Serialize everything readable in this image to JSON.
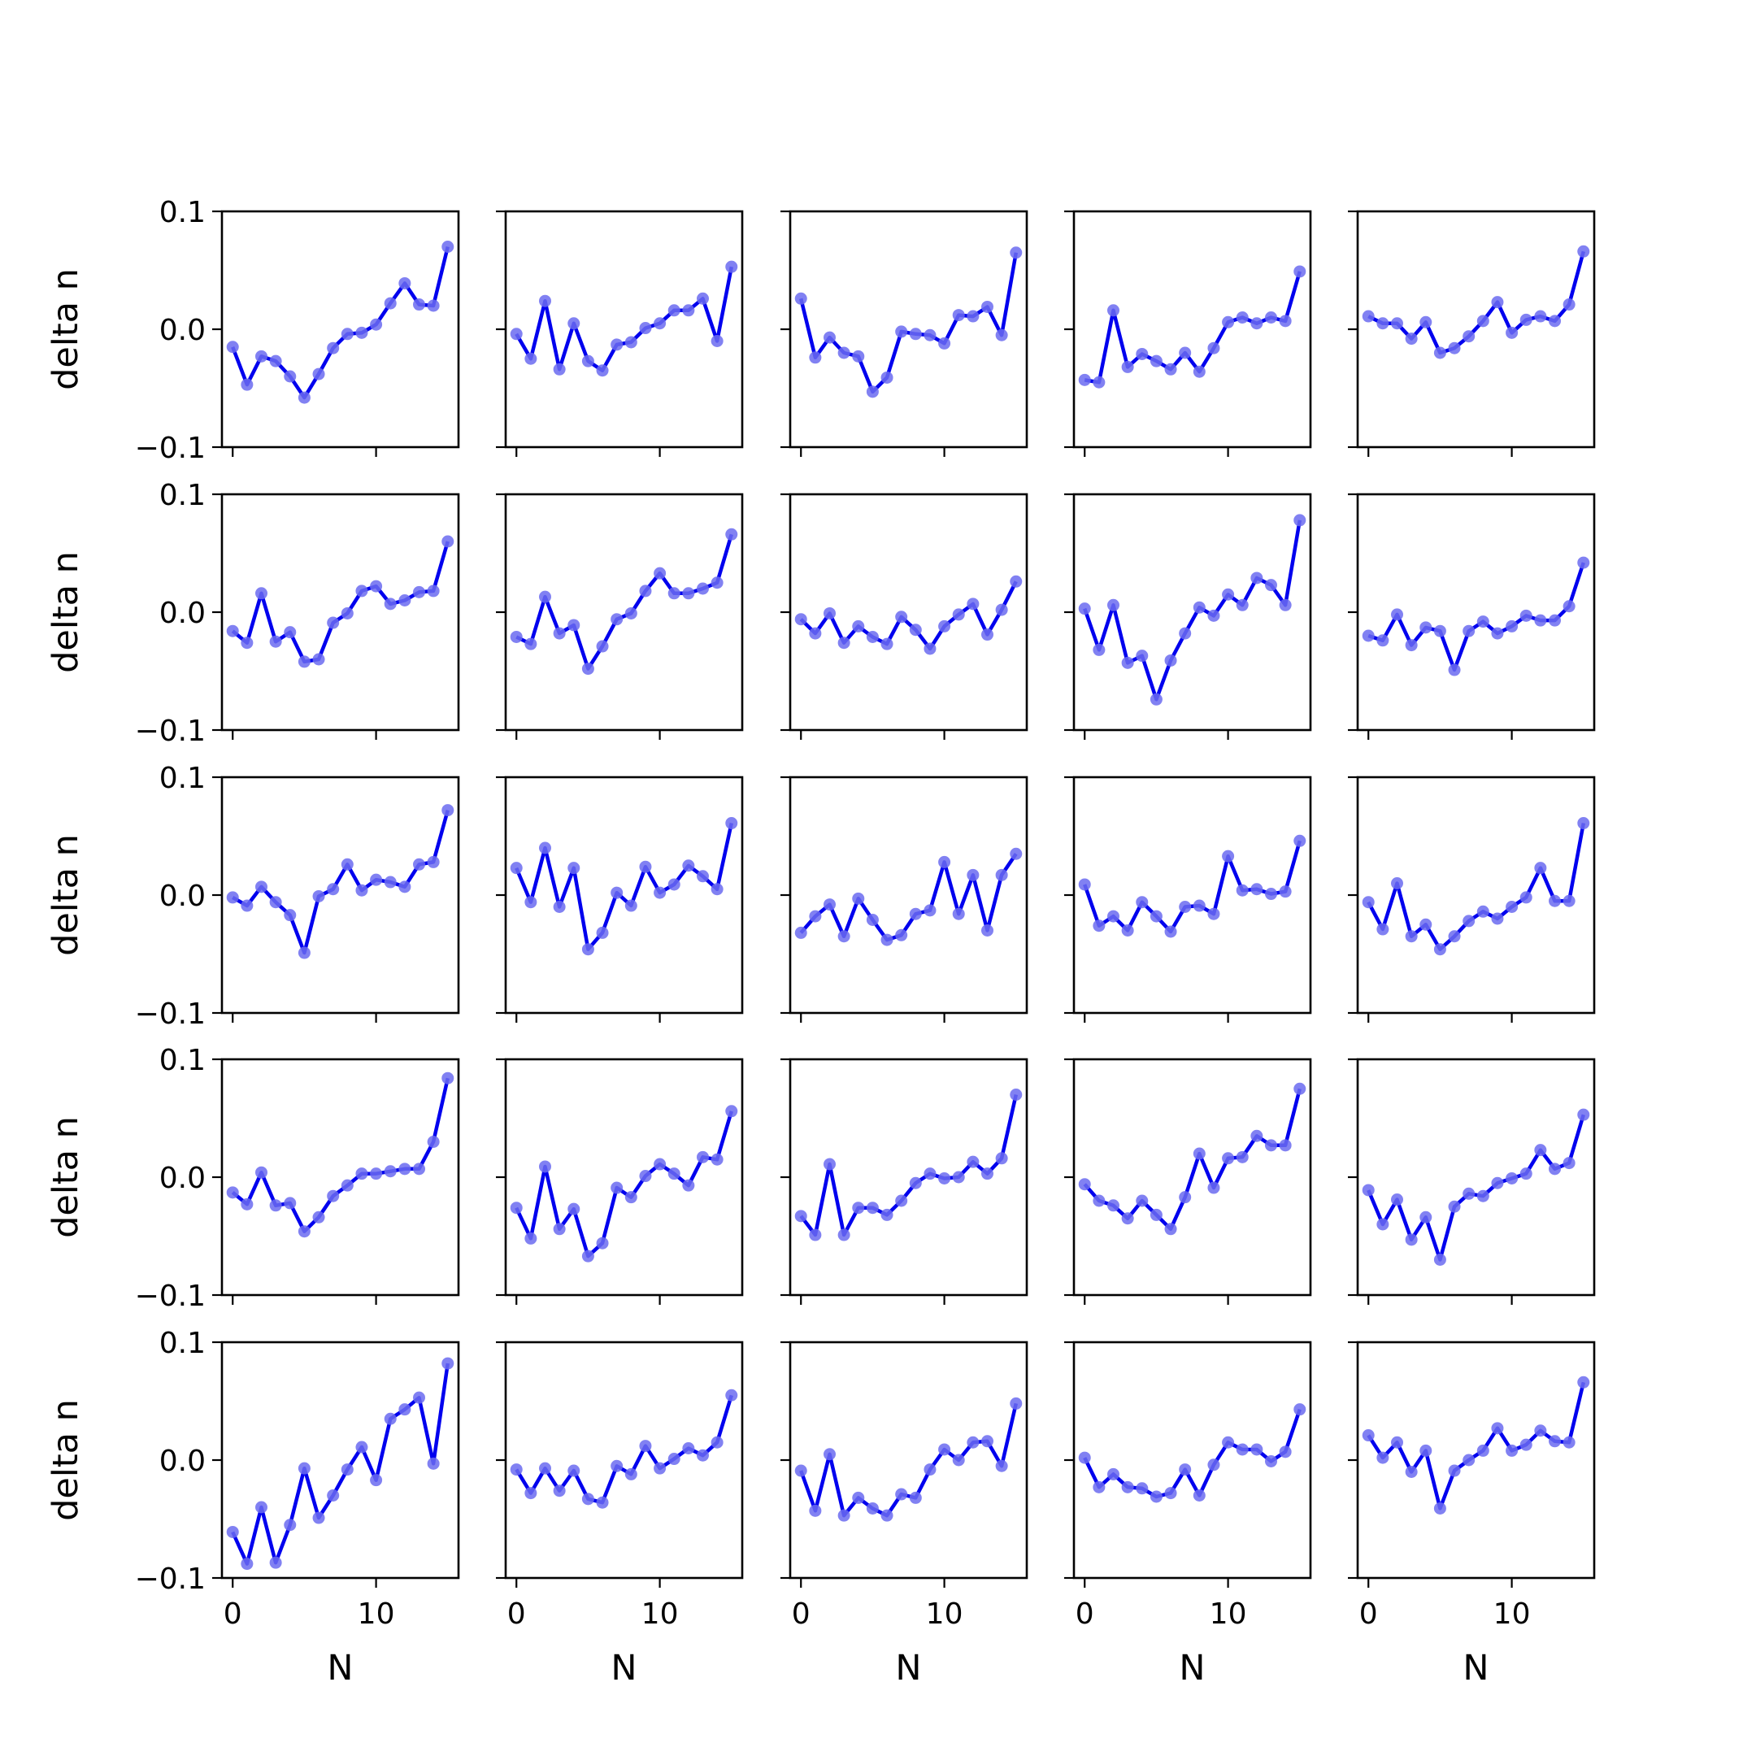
{
  "chart_data": {
    "type": "line",
    "layout": {
      "rows": 5,
      "cols": 5
    },
    "xlabel": "N",
    "ylabel": "delta n",
    "x": [
      0,
      1,
      2,
      3,
      4,
      5,
      6,
      7,
      8,
      9,
      10,
      11,
      12,
      13,
      14,
      15
    ],
    "xlim": [
      -0.75,
      15.75
    ],
    "ylim": [
      -0.1,
      0.1
    ],
    "xticks": [
      0,
      10
    ],
    "xtick_labels": [
      "0",
      "10"
    ],
    "yticks": [
      -0.1,
      0.0,
      0.1
    ],
    "ytick_labels": [
      "−0.1",
      "0.0",
      "0.1"
    ],
    "grid": false,
    "line_color": "#0000ee",
    "marker_color": "#6b6bf0",
    "subplots": [
      {
        "row": 0,
        "col": 0,
        "values": [
          -0.015,
          -0.047,
          -0.023,
          -0.027,
          -0.04,
          -0.058,
          -0.038,
          -0.016,
          -0.004,
          -0.003,
          0.004,
          0.022,
          0.039,
          0.021,
          0.02,
          0.07
        ]
      },
      {
        "row": 0,
        "col": 1,
        "values": [
          -0.004,
          -0.025,
          0.024,
          -0.034,
          0.005,
          -0.027,
          -0.035,
          -0.013,
          -0.011,
          0.001,
          0.005,
          0.016,
          0.016,
          0.026,
          -0.01,
          0.053
        ]
      },
      {
        "row": 0,
        "col": 2,
        "values": [
          0.026,
          -0.024,
          -0.007,
          -0.02,
          -0.023,
          -0.053,
          -0.041,
          -0.002,
          -0.004,
          -0.005,
          -0.012,
          0.012,
          0.011,
          0.019,
          -0.005,
          0.065
        ]
      },
      {
        "row": 0,
        "col": 3,
        "values": [
          -0.043,
          -0.045,
          0.016,
          -0.032,
          -0.021,
          -0.027,
          -0.034,
          -0.02,
          -0.036,
          -0.016,
          0.006,
          0.01,
          0.005,
          0.01,
          0.007,
          0.049
        ]
      },
      {
        "row": 0,
        "col": 4,
        "values": [
          0.011,
          0.005,
          0.005,
          -0.008,
          0.006,
          -0.02,
          -0.016,
          -0.006,
          0.007,
          0.023,
          -0.003,
          0.008,
          0.011,
          0.007,
          0.021,
          0.066
        ]
      },
      {
        "row": 1,
        "col": 0,
        "values": [
          -0.016,
          -0.026,
          0.016,
          -0.025,
          -0.017,
          -0.042,
          -0.04,
          -0.009,
          -0.001,
          0.018,
          0.022,
          0.007,
          0.01,
          0.017,
          0.018,
          0.06
        ]
      },
      {
        "row": 1,
        "col": 1,
        "values": [
          -0.021,
          -0.027,
          0.013,
          -0.018,
          -0.011,
          -0.048,
          -0.029,
          -0.006,
          -0.001,
          0.018,
          0.033,
          0.016,
          0.016,
          0.02,
          0.025,
          0.066
        ]
      },
      {
        "row": 1,
        "col": 2,
        "values": [
          -0.006,
          -0.018,
          -0.001,
          -0.026,
          -0.012,
          -0.021,
          -0.027,
          -0.004,
          -0.015,
          -0.031,
          -0.012,
          -0.002,
          0.007,
          -0.019,
          0.002,
          0.026
        ]
      },
      {
        "row": 1,
        "col": 3,
        "values": [
          0.003,
          -0.032,
          0.006,
          -0.043,
          -0.037,
          -0.074,
          -0.041,
          -0.018,
          0.004,
          -0.003,
          0.015,
          0.006,
          0.029,
          0.023,
          0.006,
          0.078
        ]
      },
      {
        "row": 1,
        "col": 4,
        "values": [
          -0.02,
          -0.024,
          -0.002,
          -0.028,
          -0.013,
          -0.016,
          -0.049,
          -0.016,
          -0.008,
          -0.018,
          -0.012,
          -0.003,
          -0.007,
          -0.007,
          0.005,
          0.042
        ]
      },
      {
        "row": 2,
        "col": 0,
        "values": [
          -0.002,
          -0.009,
          0.007,
          -0.006,
          -0.017,
          -0.049,
          -0.001,
          0.005,
          0.026,
          0.004,
          0.013,
          0.011,
          0.007,
          0.026,
          0.028,
          0.072
        ]
      },
      {
        "row": 2,
        "col": 1,
        "values": [
          0.023,
          -0.006,
          0.04,
          -0.01,
          0.023,
          -0.046,
          -0.032,
          0.002,
          -0.009,
          0.024,
          0.002,
          0.009,
          0.025,
          0.016,
          0.005,
          0.061
        ]
      },
      {
        "row": 2,
        "col": 2,
        "values": [
          -0.032,
          -0.018,
          -0.008,
          -0.035,
          -0.003,
          -0.021,
          -0.038,
          -0.034,
          -0.016,
          -0.013,
          0.028,
          -0.016,
          0.017,
          -0.03,
          0.017,
          0.035
        ]
      },
      {
        "row": 2,
        "col": 3,
        "values": [
          0.009,
          -0.026,
          -0.018,
          -0.03,
          -0.006,
          -0.018,
          -0.031,
          -0.01,
          -0.009,
          -0.016,
          0.033,
          0.004,
          0.005,
          0.001,
          0.003,
          0.046
        ]
      },
      {
        "row": 2,
        "col": 4,
        "values": [
          -0.006,
          -0.029,
          0.01,
          -0.035,
          -0.025,
          -0.046,
          -0.035,
          -0.022,
          -0.014,
          -0.02,
          -0.01,
          -0.002,
          0.023,
          -0.005,
          -0.005,
          0.061
        ]
      },
      {
        "row": 3,
        "col": 0,
        "values": [
          -0.013,
          -0.023,
          0.004,
          -0.024,
          -0.022,
          -0.046,
          -0.034,
          -0.016,
          -0.007,
          0.003,
          0.003,
          0.005,
          0.007,
          0.007,
          0.03,
          0.084
        ]
      },
      {
        "row": 3,
        "col": 1,
        "values": [
          -0.026,
          -0.052,
          0.009,
          -0.044,
          -0.027,
          -0.067,
          -0.056,
          -0.009,
          -0.017,
          0.001,
          0.011,
          0.003,
          -0.007,
          0.017,
          0.015,
          0.056
        ]
      },
      {
        "row": 3,
        "col": 2,
        "values": [
          -0.033,
          -0.049,
          0.011,
          -0.049,
          -0.026,
          -0.026,
          -0.032,
          -0.02,
          -0.005,
          0.003,
          -0.001,
          0.0,
          0.013,
          0.003,
          0.016,
          0.07
        ]
      },
      {
        "row": 3,
        "col": 3,
        "values": [
          -0.006,
          -0.02,
          -0.024,
          -0.035,
          -0.02,
          -0.032,
          -0.044,
          -0.017,
          0.02,
          -0.009,
          0.016,
          0.017,
          0.035,
          0.027,
          0.027,
          0.075
        ]
      },
      {
        "row": 3,
        "col": 4,
        "values": [
          -0.011,
          -0.04,
          -0.019,
          -0.053,
          -0.034,
          -0.07,
          -0.025,
          -0.014,
          -0.016,
          -0.005,
          -0.001,
          0.003,
          0.023,
          0.007,
          0.012,
          0.053
        ]
      },
      {
        "row": 4,
        "col": 0,
        "values": [
          -0.061,
          -0.088,
          -0.04,
          -0.087,
          -0.055,
          -0.007,
          -0.049,
          -0.03,
          -0.008,
          0.011,
          -0.017,
          0.035,
          0.043,
          0.053,
          -0.003,
          0.082
        ]
      },
      {
        "row": 4,
        "col": 1,
        "values": [
          -0.008,
          -0.028,
          -0.007,
          -0.026,
          -0.009,
          -0.033,
          -0.036,
          -0.005,
          -0.012,
          0.012,
          -0.007,
          0.001,
          0.01,
          0.004,
          0.015,
          0.055
        ]
      },
      {
        "row": 4,
        "col": 2,
        "values": [
          -0.009,
          -0.043,
          0.005,
          -0.047,
          -0.032,
          -0.041,
          -0.047,
          -0.029,
          -0.032,
          -0.008,
          0.009,
          0.0,
          0.015,
          0.016,
          -0.005,
          0.048
        ]
      },
      {
        "row": 4,
        "col": 3,
        "values": [
          0.002,
          -0.023,
          -0.012,
          -0.023,
          -0.024,
          -0.031,
          -0.028,
          -0.008,
          -0.03,
          -0.004,
          0.015,
          0.009,
          0.009,
          -0.001,
          0.007,
          0.043
        ]
      },
      {
        "row": 4,
        "col": 4,
        "values": [
          0.021,
          0.002,
          0.015,
          -0.01,
          0.008,
          -0.041,
          -0.009,
          0.0,
          0.008,
          0.027,
          0.008,
          0.013,
          0.025,
          0.016,
          0.015,
          0.066
        ]
      }
    ]
  }
}
